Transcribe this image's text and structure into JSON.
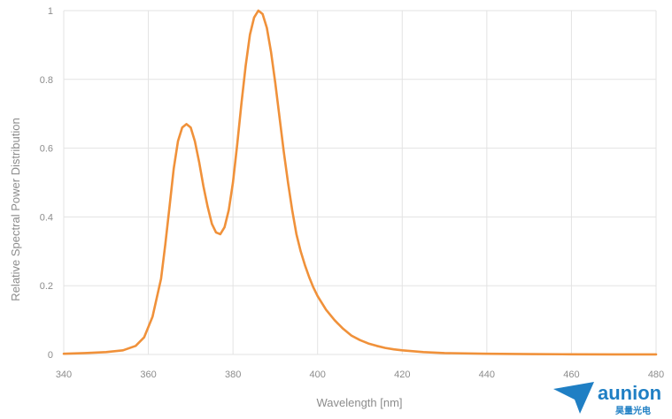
{
  "chart_data": {
    "type": "line",
    "title": "",
    "xlabel": "Wavelength [nm]",
    "ylabel": "Relative Spectral Power Distribution",
    "xlim": [
      340,
      480
    ],
    "ylim": [
      0,
      1
    ],
    "xticks": [
      340,
      360,
      380,
      400,
      420,
      440,
      460,
      480
    ],
    "yticks": [
      0,
      0.2,
      0.4,
      0.6,
      0.8,
      1
    ],
    "ytick_labels": [
      "0",
      "0.2",
      "0.4",
      "0.6",
      "0.8",
      "1"
    ],
    "grid": true,
    "series": [
      {
        "color": "#f0913a",
        "x": [
          340,
          345,
          350,
          354,
          357,
          359,
          361,
          363,
          364,
          365,
          366,
          367,
          368,
          369,
          370,
          371,
          372,
          373,
          374,
          375,
          376,
          377,
          378,
          379,
          380,
          381,
          382,
          383,
          384,
          385,
          386,
          387,
          388,
          389,
          390,
          391,
          392,
          393,
          394,
          395,
          396,
          397,
          398,
          399,
          400,
          402,
          404,
          406,
          408,
          410,
          412,
          414,
          416,
          418,
          420,
          425,
          430,
          440,
          450,
          460,
          470,
          480
        ],
        "y": [
          0.002,
          0.004,
          0.007,
          0.012,
          0.025,
          0.05,
          0.11,
          0.22,
          0.32,
          0.43,
          0.54,
          0.62,
          0.66,
          0.67,
          0.66,
          0.62,
          0.56,
          0.49,
          0.43,
          0.38,
          0.355,
          0.35,
          0.37,
          0.42,
          0.5,
          0.61,
          0.73,
          0.84,
          0.93,
          0.98,
          1.0,
          0.99,
          0.95,
          0.88,
          0.79,
          0.69,
          0.59,
          0.5,
          0.42,
          0.35,
          0.3,
          0.26,
          0.225,
          0.195,
          0.17,
          0.13,
          0.1,
          0.075,
          0.055,
          0.042,
          0.032,
          0.025,
          0.019,
          0.015,
          0.012,
          0.007,
          0.004,
          0.002,
          0.001,
          0.0005,
          0.0003,
          0.0002
        ]
      }
    ]
  },
  "logo": {
    "brand": "aunion",
    "sub": "昊量光电",
    "color": "#1f7fc4"
  }
}
